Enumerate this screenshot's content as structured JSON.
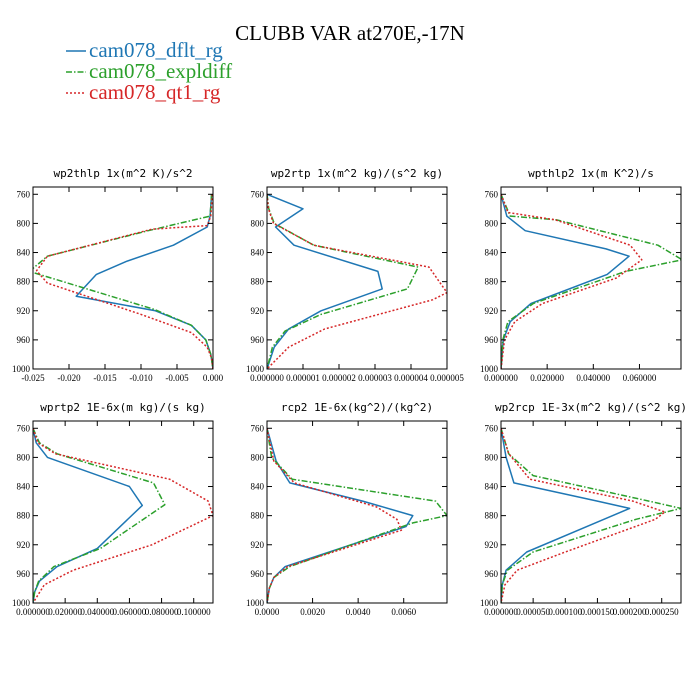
{
  "figure": {
    "title": "CLUBB VAR at270E,-17N",
    "legend": [
      {
        "label": "cam078_dflt_rg",
        "color": "#1f77b4",
        "dash": "solid"
      },
      {
        "label": "cam078_expldiff",
        "color": "#2ca02c",
        "dash": "dashdot"
      },
      {
        "label": "cam078_qt1_rg",
        "color": "#d62728",
        "dash": "dotted"
      }
    ]
  },
  "chart_data": [
    {
      "type": "line",
      "title": "wp2thlp   1x(m^2 K)/s^2",
      "xlim": [
        -0.025,
        0.0
      ],
      "ylim": [
        1000,
        750
      ],
      "xticks": [
        -0.025,
        -0.02,
        -0.015,
        -0.01,
        -0.005,
        0.0
      ],
      "xtick_labels": [
        "-0.025",
        "-0.020",
        "-0.015",
        "-0.010",
        "-0.005",
        "0.000"
      ],
      "yticks": [
        760,
        800,
        840,
        880,
        920,
        960,
        1000
      ],
      "ytick_labels": [
        "760",
        "800",
        "840",
        "880",
        "920",
        "960",
        "1000"
      ],
      "series": [
        {
          "name": "cam078_dflt_rg",
          "x": [
            -0.0002,
            -0.0004,
            -0.0008,
            -0.0055,
            -0.012,
            -0.0162,
            -0.019,
            -0.008,
            -0.003,
            -0.001,
            -0.0003,
            0.0
          ],
          "y": [
            760,
            790,
            805,
            830,
            852,
            870,
            900,
            920,
            940,
            960,
            980,
            1000
          ]
        },
        {
          "name": "cam078_expldiff",
          "x": [
            -0.0002,
            -0.0004,
            -0.009,
            -0.023,
            -0.0255,
            -0.0082,
            -0.003,
            -0.001,
            -0.0003,
            0.0
          ],
          "y": [
            760,
            790,
            810,
            845,
            866,
            918,
            940,
            960,
            980,
            1000
          ]
        },
        {
          "name": "cam078_qt1_rg",
          "x": [
            -0.0001,
            -0.0003,
            -0.0008,
            -0.0085,
            -0.023,
            -0.0245,
            -0.023,
            -0.01,
            -0.003,
            -0.0008,
            -0.0002,
            0.0
          ],
          "y": [
            760,
            790,
            803,
            808,
            845,
            865,
            882,
            925,
            950,
            970,
            985,
            1000
          ]
        }
      ]
    },
    {
      "type": "line",
      "title": "wp2rtp   1x(m^2 kg)/(s^2 kg)",
      "xlim": [
        0.0,
        5e-06
      ],
      "ylim": [
        1000,
        750
      ],
      "xticks": [
        0.0,
        1e-06,
        2e-06,
        3e-06,
        4e-06,
        5e-06
      ],
      "xtick_labels": [
        "0.000000",
        "0.000001",
        "0.000002",
        "0.000003",
        "0.000004",
        "0.000005"
      ],
      "yticks": [
        760,
        800,
        840,
        880,
        920,
        960,
        1000
      ],
      "ytick_labels": [
        "760",
        "800",
        "840",
        "880",
        "920",
        "960",
        "1000"
      ],
      "series": [
        {
          "name": "cam078_dflt_rg",
          "x": [
            0.0,
            1e-06,
            2.4e-07,
            7.5e-07,
            3.08e-06,
            3.2e-06,
            1.5e-06,
            6e-07,
            2e-07,
            0.0
          ],
          "y": [
            760,
            780,
            805,
            830,
            866,
            890,
            920,
            945,
            970,
            1000
          ]
        },
        {
          "name": "cam078_expldiff",
          "x": [
            0.0,
            5e-08,
            2e-07,
            1.3e-06,
            4.2e-06,
            3.9e-06,
            1.5e-06,
            5e-07,
            1.5e-07,
            0.0
          ],
          "y": [
            760,
            780,
            800,
            830,
            860,
            890,
            925,
            948,
            970,
            1000
          ]
        },
        {
          "name": "cam078_qt1_rg",
          "x": [
            0.0,
            4e-08,
            1.8e-07,
            1.3e-06,
            4.5e-06,
            5e-06,
            4.6e-06,
            1.6e-06,
            6e-07,
            0.0
          ],
          "y": [
            760,
            780,
            800,
            830,
            860,
            895,
            905,
            945,
            970,
            1000
          ]
        }
      ]
    },
    {
      "type": "line",
      "title": "wpthlp2   1x(m K^2)/s",
      "xlim": [
        0.0,
        0.078
      ],
      "ylim": [
        1000,
        750
      ],
      "xticks": [
        0.0,
        0.02,
        0.04,
        0.06
      ],
      "xtick_labels": [
        "0.000000",
        "0.020000",
        "0.040000",
        "0.060000"
      ],
      "yticks": [
        760,
        800,
        840,
        880,
        920,
        960,
        1000
      ],
      "ytick_labels": [
        "760",
        "800",
        "840",
        "880",
        "920",
        "960",
        "1000"
      ],
      "series": [
        {
          "name": "cam078_dflt_rg",
          "x": [
            0.0,
            0.0025,
            0.0105,
            0.0455,
            0.0555,
            0.046,
            0.013,
            0.004,
            0.001,
            0.0
          ],
          "y": [
            760,
            790,
            810,
            835,
            845,
            870,
            910,
            935,
            960,
            1000
          ]
        },
        {
          "name": "cam078_expldiff",
          "x": [
            0.0,
            0.004,
            0.024,
            0.068,
            0.0785,
            0.054,
            0.014,
            0.003,
            0.0008,
            0.0
          ],
          "y": [
            760,
            790,
            795,
            830,
            850,
            866,
            910,
            935,
            960,
            1000
          ]
        },
        {
          "name": "cam078_qt1_rg",
          "x": [
            0.0,
            0.003,
            0.0235,
            0.056,
            0.061,
            0.05,
            0.018,
            0.006,
            0.0015,
            0.0
          ],
          "y": [
            760,
            785,
            795,
            830,
            850,
            875,
            910,
            935,
            960,
            1000
          ]
        }
      ]
    },
    {
      "type": "line",
      "title": "wprtp2   1E-6x(m kg)/(s kg)",
      "xlim": [
        0.0,
        0.112
      ],
      "ylim": [
        1000,
        750
      ],
      "xticks": [
        0.0,
        0.02,
        0.04,
        0.06,
        0.08,
        0.1
      ],
      "xtick_labels": [
        "0.000000",
        "0.020000",
        "0.040000",
        "0.060000",
        "0.080000",
        "0.100000"
      ],
      "yticks": [
        760,
        800,
        840,
        880,
        920,
        960,
        1000
      ],
      "ytick_labels": [
        "760",
        "800",
        "840",
        "880",
        "920",
        "960",
        "1000"
      ],
      "series": [
        {
          "name": "cam078_dflt_rg",
          "x": [
            0.0,
            0.002,
            0.009,
            0.06,
            0.068,
            0.04,
            0.015,
            0.004,
            0.001,
            0.0
          ],
          "y": [
            760,
            780,
            800,
            840,
            866,
            925,
            950,
            970,
            985,
            1000
          ]
        },
        {
          "name": "cam078_expldiff",
          "x": [
            0.0,
            0.004,
            0.015,
            0.075,
            0.082,
            0.042,
            0.013,
            0.0035,
            0.001,
            0.0
          ],
          "y": [
            760,
            780,
            795,
            835,
            865,
            925,
            950,
            970,
            985,
            1000
          ]
        },
        {
          "name": "cam078_qt1_rg",
          "x": [
            0.0,
            0.003,
            0.014,
            0.085,
            0.109,
            0.112,
            0.074,
            0.025,
            0.007,
            0.0
          ],
          "y": [
            760,
            780,
            795,
            830,
            860,
            880,
            920,
            955,
            975,
            1000
          ]
        }
      ]
    },
    {
      "type": "line",
      "title": "rcp2   1E-6x(kg^2)/(kg^2)",
      "xlim": [
        0.0,
        0.0079
      ],
      "ylim": [
        1000,
        750
      ],
      "xticks": [
        0.0,
        0.002,
        0.004,
        0.006
      ],
      "xtick_labels": [
        "0.0000",
        "0.0020",
        "0.0040",
        "0.0060"
      ],
      "yticks": [
        760,
        800,
        840,
        880,
        920,
        960,
        1000
      ],
      "ytick_labels": [
        "760",
        "800",
        "840",
        "880",
        "920",
        "960",
        "1000"
      ],
      "series": [
        {
          "name": "cam078_dflt_rg",
          "x": [
            0.0,
            0.0004,
            0.001,
            0.0042,
            0.0064,
            0.0061,
            0.0008,
            0.0003,
            0.0001,
            0.0
          ],
          "y": [
            760,
            805,
            835,
            860,
            880,
            895,
            950,
            965,
            980,
            1000
          ]
        },
        {
          "name": "cam078_expldiff",
          "x": [
            0.0,
            0.0002,
            0.0011,
            0.0074,
            0.0079,
            0.0064,
            0.001,
            0.0003,
            0.0001,
            0.0
          ],
          "y": [
            760,
            800,
            830,
            860,
            880,
            890,
            950,
            965,
            980,
            1000
          ]
        },
        {
          "name": "cam078_qt1_rg",
          "x": [
            0.0,
            0.0003,
            0.0012,
            0.0048,
            0.0057,
            0.0059,
            0.0009,
            0.0003,
            0.0001,
            0.0
          ],
          "y": [
            760,
            805,
            835,
            868,
            885,
            900,
            950,
            965,
            980,
            1000
          ]
        }
      ]
    },
    {
      "type": "line",
      "title": "wp2rcp   1E-3x(m^2 kg)/(s^2 kg)",
      "xlim": [
        0.0,
        0.00028
      ],
      "ylim": [
        1000,
        750
      ],
      "xticks": [
        0.0,
        5e-05,
        0.0001,
        0.00015,
        0.0002,
        0.00025
      ],
      "xtick_labels": [
        "0.000000",
        "0.000050",
        "0.000100",
        "0.000150",
        "0.000200",
        "0.000250"
      ],
      "yticks": [
        760,
        800,
        840,
        880,
        920,
        960,
        1000
      ],
      "ytick_labels": [
        "760",
        "800",
        "840",
        "880",
        "920",
        "960",
        "1000"
      ],
      "series": [
        {
          "name": "cam078_dflt_rg",
          "x": [
            0.0,
            8e-06,
            2e-05,
            0.00015,
            0.0002,
            0.00016,
            4e-05,
            8e-06,
            2e-06,
            0.0
          ],
          "y": [
            760,
            800,
            835,
            860,
            870,
            885,
            930,
            955,
            975,
            1000
          ]
        },
        {
          "name": "cam078_expldiff",
          "x": [
            0.0,
            1.2e-05,
            5e-05,
            0.00023,
            0.00028,
            0.00021,
            5e-05,
            1e-05,
            2e-06,
            0.0
          ],
          "y": [
            760,
            795,
            825,
            860,
            870,
            885,
            930,
            955,
            975,
            1000
          ]
        },
        {
          "name": "cam078_qt1_rg",
          "x": [
            0.0,
            1.2e-05,
            4.5e-05,
            0.000205,
            0.000255,
            0.00024,
            0.0001,
            2.5e-05,
            6e-06,
            0.0
          ],
          "y": [
            760,
            795,
            830,
            860,
            875,
            885,
            930,
            955,
            975,
            1000
          ]
        }
      ]
    }
  ]
}
